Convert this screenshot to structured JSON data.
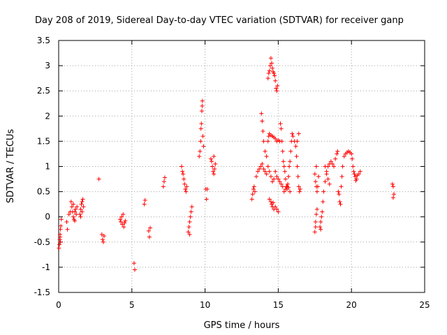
{
  "chart_data": {
    "type": "scatter",
    "title": "Day 208 of 2019, Sidereal Day-to-day VTEC variation (SDTVAR) for receiver ganp",
    "xlabel": "GPS time / hours",
    "ylabel": "SDTVAR / TECUs",
    "xlim": [
      0,
      25
    ],
    "ylim": [
      -1.5,
      3.5
    ],
    "xticks": [
      "0",
      "5",
      "10",
      "15",
      "20",
      "25"
    ],
    "yticks": [
      "-1.5",
      "-1",
      "-0.5",
      "0",
      "0.5",
      "1",
      "1.5",
      "2",
      "2.5",
      "3",
      "3.5"
    ],
    "grid": true,
    "marker": "+",
    "series": [
      {
        "name": "SDTVAR",
        "color": "#ff0000",
        "points": [
          [
            0.02,
            -0.62
          ],
          [
            0.05,
            -0.55
          ],
          [
            0.08,
            -0.45
          ],
          [
            0.1,
            -0.35
          ],
          [
            0.12,
            -0.25
          ],
          [
            0.15,
            -0.18
          ],
          [
            0.12,
            -0.5
          ],
          [
            0.18,
            -0.05
          ],
          [
            0.1,
            -0.4
          ],
          [
            0.55,
            -0.1
          ],
          [
            0.6,
            -0.25
          ],
          [
            0.7,
            0.05
          ],
          [
            0.8,
            0.1
          ],
          [
            0.85,
            0.3
          ],
          [
            0.9,
            0.2
          ],
          [
            0.95,
            0.1
          ],
          [
            1.0,
            0.0
          ],
          [
            1.05,
            -0.05
          ],
          [
            1.1,
            0.1
          ],
          [
            1.15,
            0.15
          ],
          [
            1.2,
            0.05
          ],
          [
            1.25,
            0.2
          ],
          [
            1.0,
            0.25
          ],
          [
            1.1,
            -0.08
          ],
          [
            1.45,
            0.05
          ],
          [
            1.5,
            0.15
          ],
          [
            1.55,
            0.25
          ],
          [
            1.6,
            0.3
          ],
          [
            1.65,
            0.35
          ],
          [
            1.7,
            0.2
          ],
          [
            1.5,
            0.0
          ],
          [
            1.6,
            0.1
          ],
          [
            2.75,
            0.75
          ],
          [
            2.95,
            -0.35
          ],
          [
            3.0,
            -0.45
          ],
          [
            3.05,
            -0.5
          ],
          [
            3.1,
            -0.38
          ],
          [
            4.2,
            -0.05
          ],
          [
            4.25,
            -0.1
          ],
          [
            4.3,
            0.0
          ],
          [
            4.35,
            -0.15
          ],
          [
            4.4,
            0.05
          ],
          [
            4.45,
            -0.2
          ],
          [
            4.5,
            -0.12
          ],
          [
            4.55,
            -0.08
          ],
          [
            5.15,
            -0.92
          ],
          [
            5.2,
            -1.05
          ],
          [
            5.85,
            0.25
          ],
          [
            5.9,
            0.33
          ],
          [
            6.15,
            -0.28
          ],
          [
            6.2,
            -0.4
          ],
          [
            6.25,
            -0.22
          ],
          [
            7.15,
            0.6
          ],
          [
            7.2,
            0.7
          ],
          [
            7.25,
            0.78
          ],
          [
            8.4,
            1.0
          ],
          [
            8.45,
            0.9
          ],
          [
            8.5,
            0.85
          ],
          [
            8.55,
            0.75
          ],
          [
            8.6,
            0.65
          ],
          [
            8.65,
            0.55
          ],
          [
            8.7,
            0.5
          ],
          [
            8.75,
            0.6
          ],
          [
            8.85,
            -0.3
          ],
          [
            8.9,
            -0.2
          ],
          [
            8.95,
            -0.1
          ],
          [
            9.0,
            0.0
          ],
          [
            9.05,
            0.1
          ],
          [
            9.1,
            0.2
          ],
          [
            8.95,
            -0.35
          ],
          [
            9.6,
            1.2
          ],
          [
            9.65,
            1.3
          ],
          [
            9.7,
            1.5
          ],
          [
            9.72,
            1.75
          ],
          [
            9.75,
            1.85
          ],
          [
            9.78,
            2.1
          ],
          [
            9.8,
            2.2
          ],
          [
            9.82,
            2.3
          ],
          [
            9.85,
            1.6
          ],
          [
            9.9,
            1.4
          ],
          [
            10.05,
            0.55
          ],
          [
            10.1,
            0.35
          ],
          [
            10.15,
            0.55
          ],
          [
            10.4,
            1.15
          ],
          [
            10.45,
            1.1
          ],
          [
            10.5,
            1.0
          ],
          [
            10.55,
            0.9
          ],
          [
            10.6,
            0.85
          ],
          [
            10.65,
            0.95
          ],
          [
            10.7,
            1.05
          ],
          [
            10.6,
            1.2
          ],
          [
            13.2,
            0.35
          ],
          [
            13.25,
            0.45
          ],
          [
            13.3,
            0.55
          ],
          [
            13.35,
            0.6
          ],
          [
            13.4,
            0.5
          ],
          [
            13.5,
            0.8
          ],
          [
            13.6,
            0.9
          ],
          [
            13.7,
            0.95
          ],
          [
            13.8,
            1.0
          ],
          [
            13.9,
            1.05
          ],
          [
            14.0,
            0.95
          ],
          [
            14.1,
            0.9
          ],
          [
            14.2,
            0.85
          ],
          [
            14.3,
            1.0
          ],
          [
            14.4,
            0.9
          ],
          [
            14.5,
            0.8
          ],
          [
            14.6,
            0.7
          ],
          [
            14.7,
            0.75
          ],
          [
            13.85,
            2.05
          ],
          [
            13.9,
            1.9
          ],
          [
            13.95,
            1.7
          ],
          [
            14.0,
            1.5
          ],
          [
            14.1,
            1.3
          ],
          [
            14.2,
            1.2
          ],
          [
            14.3,
            1.5
          ],
          [
            14.35,
            1.6
          ],
          [
            14.4,
            1.65
          ],
          [
            14.5,
            1.62
          ],
          [
            14.6,
            1.6
          ],
          [
            14.7,
            1.58
          ],
          [
            14.8,
            1.55
          ],
          [
            14.9,
            1.5
          ],
          [
            15.0,
            1.52
          ],
          [
            15.1,
            1.5
          ],
          [
            14.3,
            2.75
          ],
          [
            14.35,
            2.85
          ],
          [
            14.4,
            2.9
          ],
          [
            14.45,
            3.0
          ],
          [
            14.5,
            3.15
          ],
          [
            14.55,
            3.05
          ],
          [
            14.6,
            2.95
          ],
          [
            14.65,
            2.88
          ],
          [
            14.7,
            2.85
          ],
          [
            14.75,
            2.8
          ],
          [
            14.8,
            2.7
          ],
          [
            14.85,
            2.55
          ],
          [
            14.9,
            2.5
          ],
          [
            14.95,
            2.6
          ],
          [
            14.4,
            0.35
          ],
          [
            14.5,
            0.3
          ],
          [
            14.6,
            0.2
          ],
          [
            14.7,
            0.15
          ],
          [
            14.8,
            0.2
          ],
          [
            14.9,
            0.15
          ],
          [
            15.0,
            0.1
          ],
          [
            14.55,
            0.25
          ],
          [
            14.65,
            0.28
          ],
          [
            14.8,
            0.9
          ],
          [
            14.9,
            0.8
          ],
          [
            15.0,
            0.75
          ],
          [
            15.1,
            0.7
          ],
          [
            15.2,
            0.65
          ],
          [
            15.15,
            1.85
          ],
          [
            15.2,
            1.75
          ],
          [
            15.25,
            1.5
          ],
          [
            15.3,
            1.3
          ],
          [
            15.35,
            1.1
          ],
          [
            15.4,
            1.0
          ],
          [
            15.45,
            0.9
          ],
          [
            15.5,
            0.75
          ],
          [
            15.55,
            0.6
          ],
          [
            15.6,
            0.55
          ],
          [
            15.65,
            0.65
          ],
          [
            15.7,
            0.8
          ],
          [
            15.75,
            1.0
          ],
          [
            15.8,
            1.1
          ],
          [
            15.85,
            1.3
          ],
          [
            15.9,
            1.5
          ],
          [
            15.95,
            1.65
          ],
          [
            16.0,
            1.6
          ],
          [
            16.1,
            1.5
          ],
          [
            15.3,
            0.6
          ],
          [
            15.4,
            0.5
          ],
          [
            15.5,
            0.55
          ],
          [
            15.6,
            0.6
          ],
          [
            15.7,
            0.58
          ],
          [
            15.8,
            0.5
          ],
          [
            16.2,
            1.4
          ],
          [
            16.25,
            1.2
          ],
          [
            16.3,
            1.0
          ],
          [
            16.35,
            0.8
          ],
          [
            16.4,
            0.6
          ],
          [
            16.45,
            0.5
          ],
          [
            16.5,
            0.55
          ],
          [
            16.4,
            1.65
          ],
          [
            16.3,
            1.5
          ],
          [
            17.5,
            -0.3
          ],
          [
            17.55,
            -0.1
          ],
          [
            17.6,
            0.05
          ],
          [
            17.65,
            0.15
          ],
          [
            17.55,
            -0.2
          ],
          [
            17.5,
            0.85
          ],
          [
            17.55,
            0.7
          ],
          [
            17.6,
            0.6
          ],
          [
            17.65,
            0.5
          ],
          [
            17.7,
            0.6
          ],
          [
            17.75,
            0.8
          ],
          [
            17.6,
            1.0
          ],
          [
            17.85,
            -0.2
          ],
          [
            17.9,
            -0.1
          ],
          [
            17.95,
            0.0
          ],
          [
            18.0,
            0.1
          ],
          [
            18.05,
            0.3
          ],
          [
            17.9,
            -0.25
          ],
          [
            18.1,
            0.5
          ],
          [
            18.2,
            0.7
          ],
          [
            18.3,
            0.9
          ],
          [
            18.4,
            1.0
          ],
          [
            18.5,
            1.05
          ],
          [
            18.6,
            1.1
          ],
          [
            18.7,
            1.05
          ],
          [
            18.8,
            1.0
          ],
          [
            18.9,
            1.15
          ],
          [
            19.0,
            1.25
          ],
          [
            19.05,
            1.3
          ],
          [
            18.2,
            1.0
          ],
          [
            18.3,
            0.85
          ],
          [
            18.4,
            0.75
          ],
          [
            18.5,
            0.65
          ],
          [
            19.1,
            0.5
          ],
          [
            19.15,
            0.45
          ],
          [
            19.2,
            0.3
          ],
          [
            19.25,
            0.25
          ],
          [
            19.3,
            0.6
          ],
          [
            19.35,
            0.8
          ],
          [
            19.4,
            1.0
          ],
          [
            19.5,
            1.2
          ],
          [
            19.6,
            1.25
          ],
          [
            19.7,
            1.28
          ],
          [
            19.8,
            1.3
          ],
          [
            19.9,
            1.28
          ],
          [
            20.0,
            1.25
          ],
          [
            20.05,
            1.15
          ],
          [
            20.1,
            1.0
          ],
          [
            20.15,
            0.9
          ],
          [
            20.2,
            0.85
          ],
          [
            20.25,
            0.8
          ],
          [
            20.3,
            0.72
          ],
          [
            20.35,
            0.75
          ],
          [
            20.4,
            0.82
          ],
          [
            20.5,
            0.85
          ],
          [
            20.6,
            0.9
          ],
          [
            22.8,
            0.65
          ],
          [
            22.85,
            0.6
          ],
          [
            22.9,
            0.45
          ],
          [
            22.85,
            0.38
          ]
        ]
      }
    ]
  }
}
